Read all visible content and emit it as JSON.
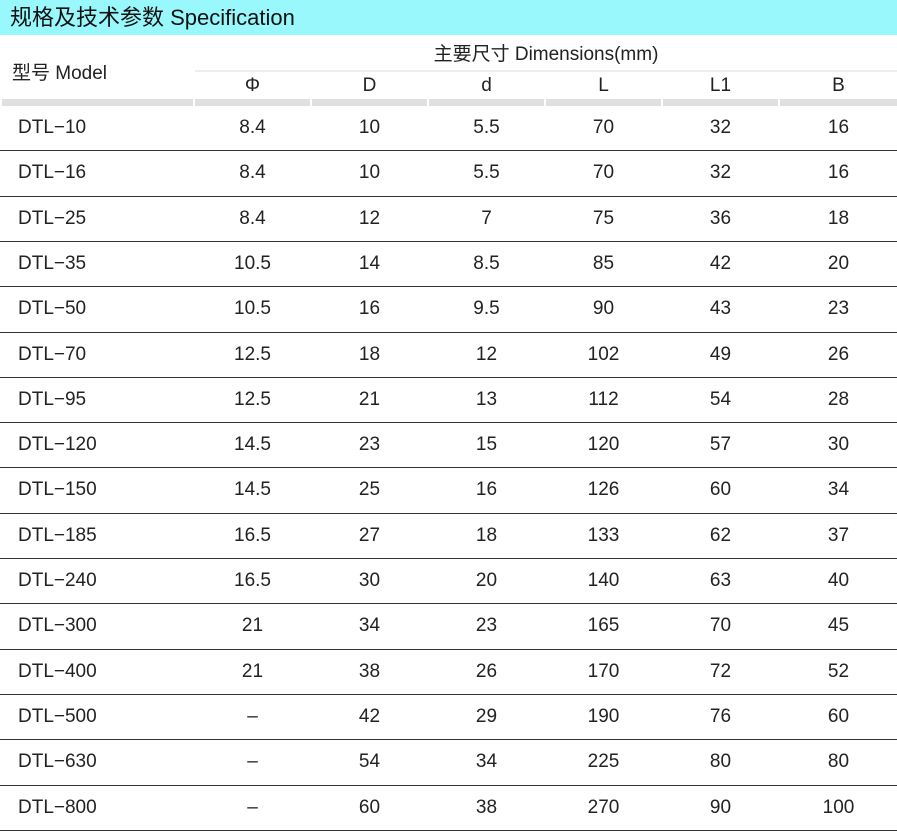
{
  "title": "规格及技术参数  Specification",
  "header": {
    "model": "型号 Model",
    "dimensions": "主要尺寸  Dimensions(mm)",
    "columns": [
      "Φ",
      "D",
      "d",
      "L",
      "L1",
      "B"
    ]
  },
  "rows": [
    [
      "DTL−10",
      "8.4",
      "10",
      "5.5",
      "70",
      "32",
      "16"
    ],
    [
      "DTL−16",
      "8.4",
      "10",
      "5.5",
      "70",
      "32",
      "16"
    ],
    [
      "DTL−25",
      "8.4",
      "12",
      "7",
      "75",
      "36",
      "18"
    ],
    [
      "DTL−35",
      "10.5",
      "14",
      "8.5",
      "85",
      "42",
      "20"
    ],
    [
      "DTL−50",
      "10.5",
      "16",
      "9.5",
      "90",
      "43",
      "23"
    ],
    [
      "DTL−70",
      "12.5",
      "18",
      "12",
      "102",
      "49",
      "26"
    ],
    [
      "DTL−95",
      "12.5",
      "21",
      "13",
      "112",
      "54",
      "28"
    ],
    [
      "DTL−120",
      "14.5",
      "23",
      "15",
      "120",
      "57",
      "30"
    ],
    [
      "DTL−150",
      "14.5",
      "25",
      "16",
      "126",
      "60",
      "34"
    ],
    [
      "DTL−185",
      "16.5",
      "27",
      "18",
      "133",
      "62",
      "37"
    ],
    [
      "DTL−240",
      "16.5",
      "30",
      "20",
      "140",
      "63",
      "40"
    ],
    [
      "DTL−300",
      "21",
      "34",
      "23",
      "165",
      "70",
      "45"
    ],
    [
      "DTL−400",
      "21",
      "38",
      "26",
      "170",
      "72",
      "52"
    ],
    [
      "DTL−500",
      "–",
      "42",
      "29",
      "190",
      "76",
      "60"
    ],
    [
      "DTL−630",
      "–",
      "54",
      "34",
      "225",
      "80",
      "80"
    ],
    [
      "DTL−800",
      "–",
      "60",
      "38",
      "270",
      "90",
      "100"
    ]
  ]
}
